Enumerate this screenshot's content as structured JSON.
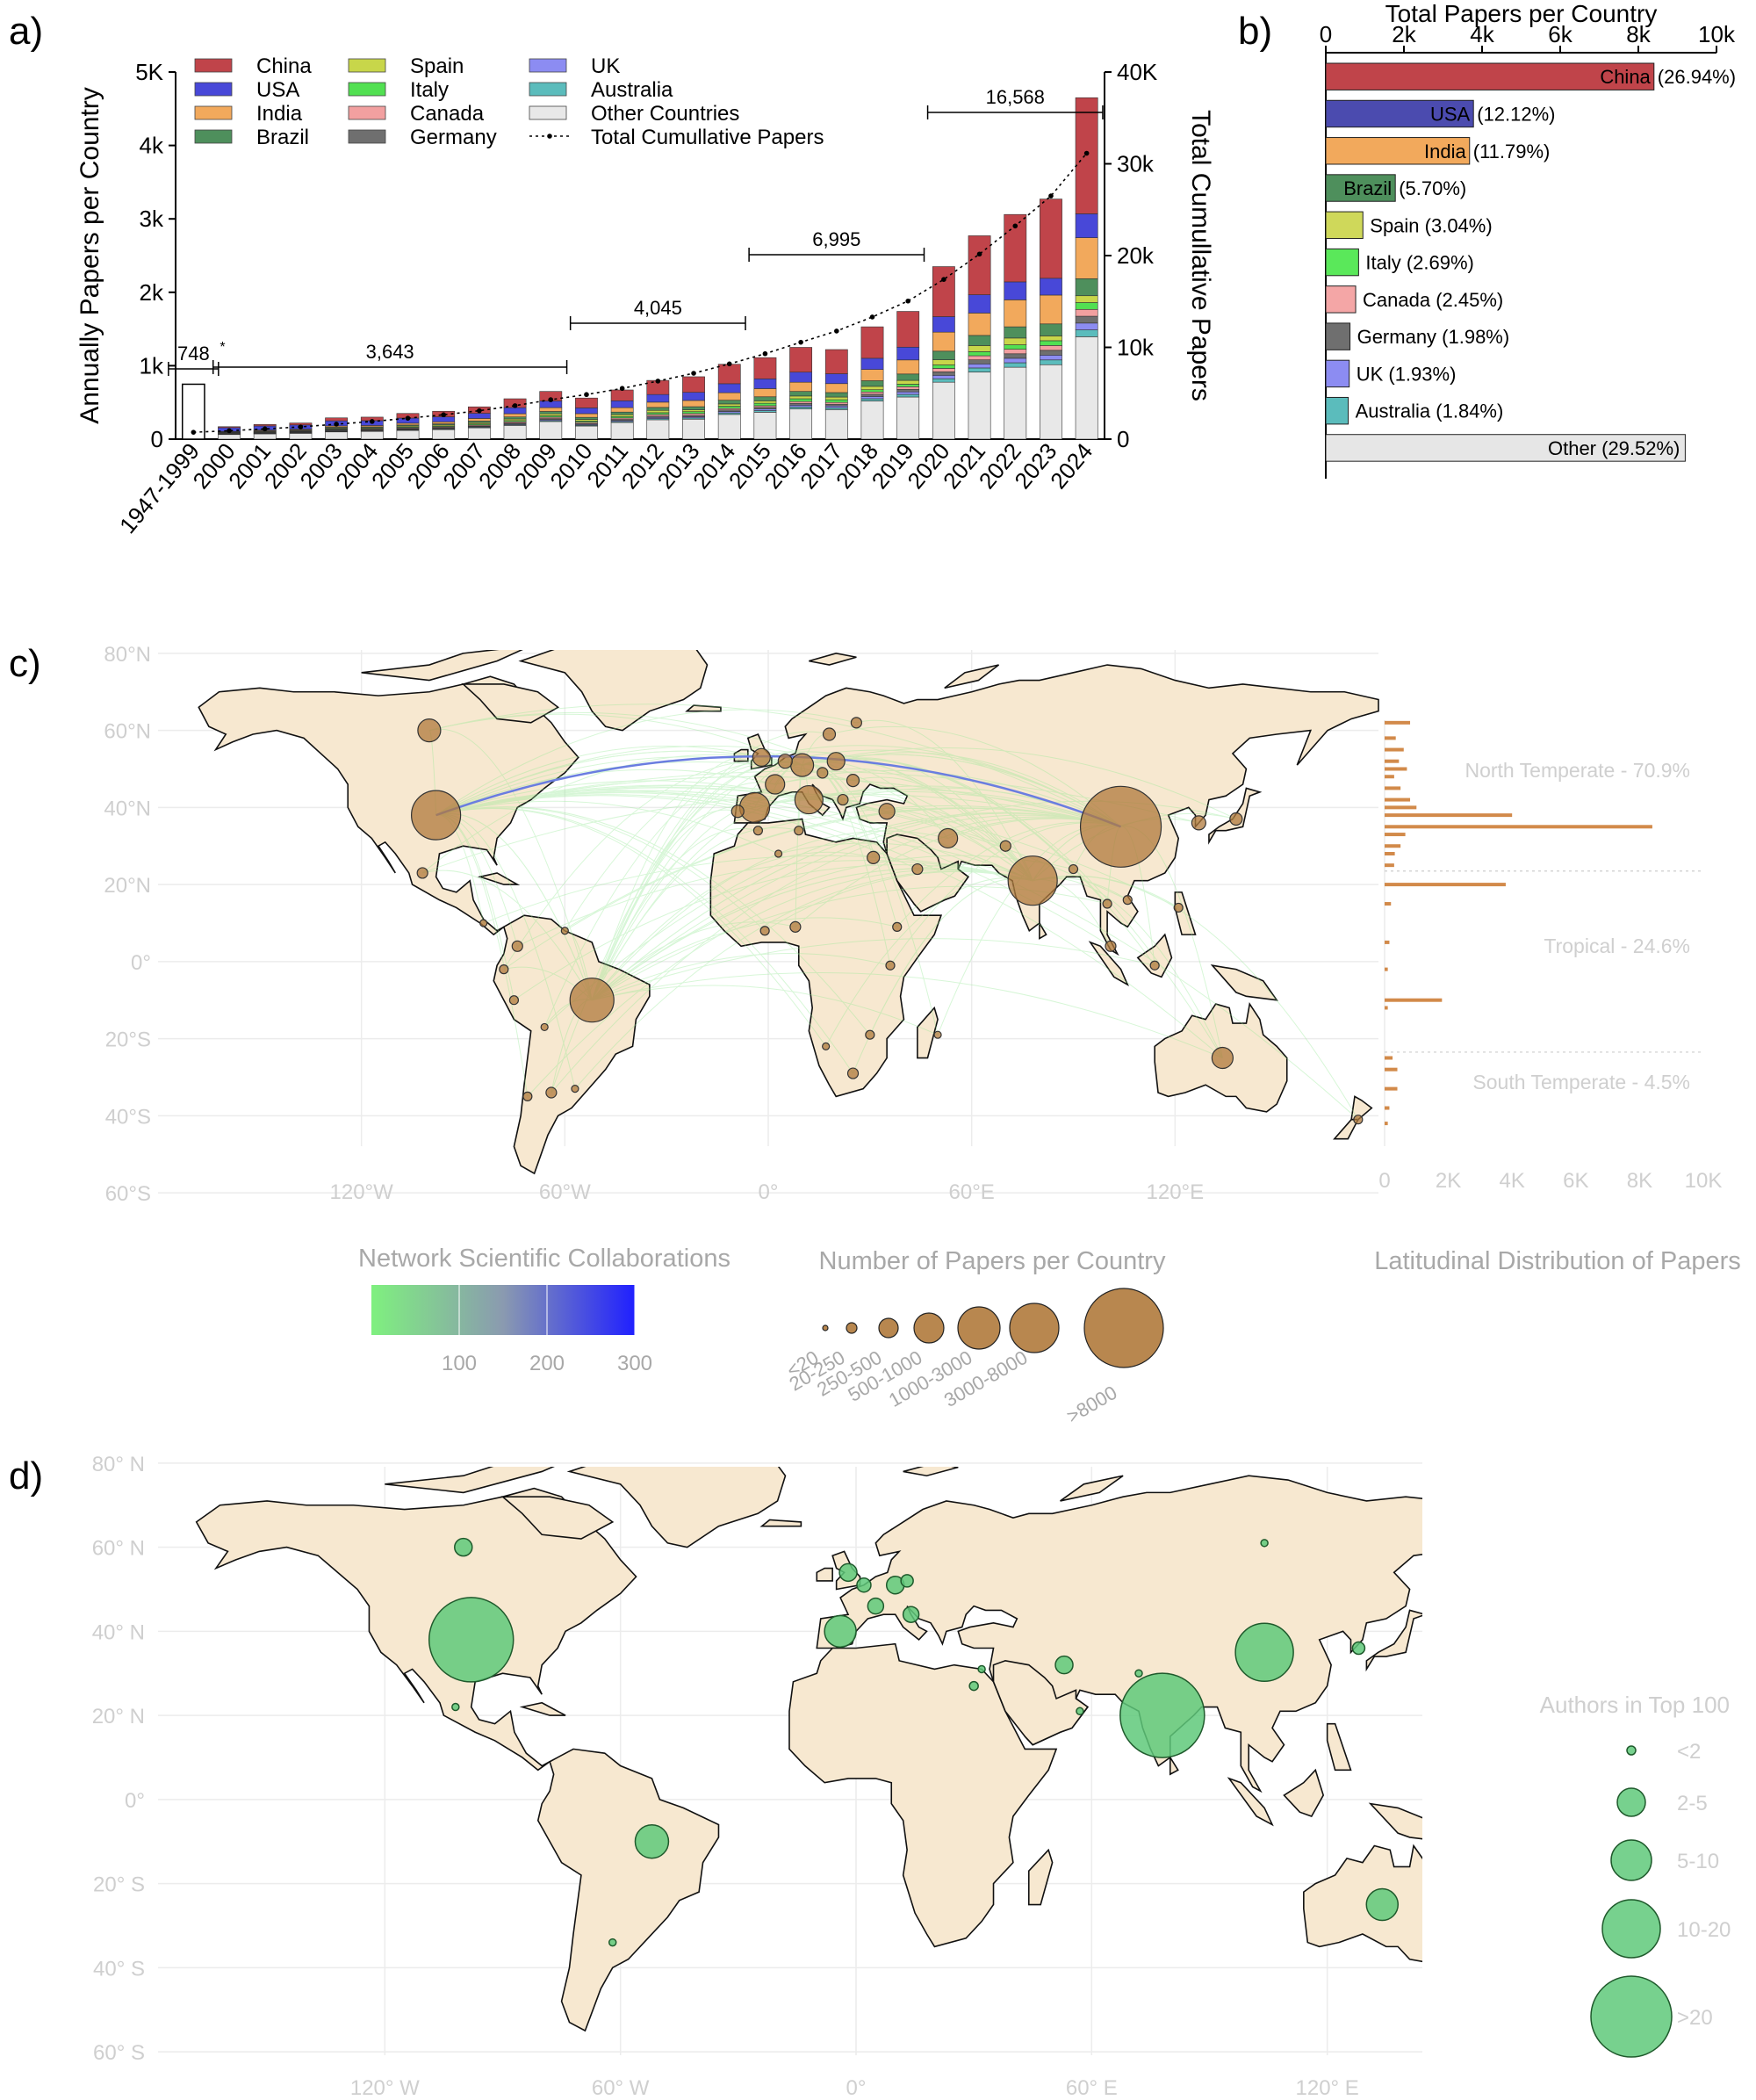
{
  "panel_labels": {
    "a": "a)",
    "b": "b)",
    "c": "c)",
    "d": "d)"
  },
  "chart_data": [
    {
      "type": "bar",
      "panel": "a",
      "stacked": true,
      "ylabel": "Annually Papers per Country",
      "y2label": "Total Cumullative Papers",
      "ylim": [
        0,
        5000
      ],
      "y2lim": [
        0,
        40000
      ],
      "yticks": [
        "0",
        "1k",
        "2k",
        "3k",
        "4k",
        "5K"
      ],
      "y2ticks": [
        "0",
        "10k",
        "20k",
        "30k",
        "40K"
      ],
      "categories": [
        "1947-1999",
        "2000",
        "2001",
        "2002",
        "2003",
        "2004",
        "2005",
        "2006",
        "2007",
        "2008",
        "2009",
        "2010",
        "2011",
        "2012",
        "2013",
        "2014",
        "2015",
        "2016",
        "2017",
        "2018",
        "2019",
        "2020",
        "2021",
        "2022",
        "2023",
        "2024"
      ],
      "totals": [
        748,
        170,
        200,
        220,
        290,
        300,
        350,
        380,
        440,
        550,
        650,
        560,
        670,
        800,
        850,
        1020,
        1110,
        1250,
        1220,
        1530,
        1740,
        2350,
        2770,
        3060,
        3270,
        4650
      ],
      "series": [
        {
          "name": "China",
          "color": "#c0444a",
          "share": [
            0,
            0.08,
            0.1,
            0.12,
            0.14,
            0.16,
            0.18,
            0.2,
            0.2,
            0.22,
            0.2,
            0.24,
            0.22,
            0.24,
            0.25,
            0.26,
            0.26,
            0.27,
            0.27,
            0.28,
            0.28,
            0.29,
            0.29,
            0.3,
            0.33,
            0.34
          ]
        },
        {
          "name": "USA",
          "color": "#4848d8",
          "share": [
            0,
            0.3,
            0.28,
            0.26,
            0.24,
            0.22,
            0.2,
            0.18,
            0.16,
            0.15,
            0.14,
            0.14,
            0.14,
            0.13,
            0.13,
            0.12,
            0.12,
            0.11,
            0.11,
            0.1,
            0.1,
            0.09,
            0.09,
            0.08,
            0.07,
            0.07
          ]
        },
        {
          "name": "India",
          "color": "#f2a95c",
          "share": [
            0,
            0.04,
            0.05,
            0.05,
            0.06,
            0.06,
            0.07,
            0.07,
            0.08,
            0.08,
            0.08,
            0.09,
            0.09,
            0.09,
            0.1,
            0.1,
            0.1,
            0.1,
            0.1,
            0.1,
            0.11,
            0.11,
            0.11,
            0.12,
            0.12,
            0.12
          ]
        },
        {
          "name": "Brazil",
          "color": "#4e8f5c",
          "share": [
            0,
            0.03,
            0.03,
            0.03,
            0.04,
            0.04,
            0.04,
            0.04,
            0.05,
            0.05,
            0.05,
            0.05,
            0.05,
            0.05,
            0.05,
            0.05,
            0.05,
            0.05,
            0.05,
            0.05,
            0.05,
            0.05,
            0.05,
            0.05,
            0.05,
            0.05
          ]
        },
        {
          "name": "Spain",
          "color": "#c8d64a",
          "share": [
            0,
            0.04,
            0.04,
            0.04,
            0.04,
            0.04,
            0.04,
            0.04,
            0.04,
            0.04,
            0.04,
            0.04,
            0.04,
            0.04,
            0.03,
            0.03,
            0.03,
            0.03,
            0.03,
            0.03,
            0.03,
            0.03,
            0.03,
            0.03,
            0.02,
            0.02
          ]
        },
        {
          "name": "Italy",
          "color": "#52e052",
          "share": [
            0,
            0.03,
            0.03,
            0.03,
            0.03,
            0.03,
            0.03,
            0.03,
            0.03,
            0.03,
            0.03,
            0.03,
            0.03,
            0.03,
            0.03,
            0.03,
            0.03,
            0.03,
            0.03,
            0.02,
            0.02,
            0.02,
            0.02,
            0.02,
            0.02,
            0.02
          ]
        },
        {
          "name": "Canada",
          "color": "#f2a0a0",
          "share": [
            0,
            0.03,
            0.03,
            0.03,
            0.03,
            0.03,
            0.03,
            0.03,
            0.03,
            0.03,
            0.03,
            0.03,
            0.03,
            0.03,
            0.03,
            0.02,
            0.02,
            0.02,
            0.02,
            0.02,
            0.02,
            0.02,
            0.02,
            0.02,
            0.02,
            0.02
          ]
        },
        {
          "name": "Germany",
          "color": "#6f6f6f",
          "share": [
            0,
            0.03,
            0.03,
            0.03,
            0.03,
            0.03,
            0.03,
            0.03,
            0.02,
            0.02,
            0.02,
            0.02,
            0.02,
            0.02,
            0.02,
            0.02,
            0.02,
            0.02,
            0.02,
            0.02,
            0.02,
            0.02,
            0.02,
            0.02,
            0.02,
            0.02
          ]
        },
        {
          "name": "UK",
          "color": "#8c8cf2",
          "share": [
            0,
            0.03,
            0.03,
            0.03,
            0.03,
            0.02,
            0.02,
            0.02,
            0.02,
            0.02,
            0.02,
            0.02,
            0.02,
            0.02,
            0.02,
            0.02,
            0.02,
            0.02,
            0.02,
            0.02,
            0.02,
            0.02,
            0.02,
            0.02,
            0.02,
            0.02
          ]
        },
        {
          "name": "Australia",
          "color": "#5bbcbc",
          "share": [
            0,
            0.02,
            0.02,
            0.02,
            0.02,
            0.02,
            0.02,
            0.02,
            0.02,
            0.02,
            0.02,
            0.02,
            0.02,
            0.02,
            0.02,
            0.02,
            0.02,
            0.02,
            0.02,
            0.02,
            0.02,
            0.02,
            0.02,
            0.02,
            0.02,
            0.02
          ]
        },
        {
          "name": "Other Countries",
          "color": "#e8e8e8"
        }
      ],
      "legend_extra": "Total Cumullative Papers",
      "cumulative": [
        748,
        918,
        1118,
        1338,
        1628,
        1928,
        2278,
        2658,
        3098,
        3648,
        4298,
        4858,
        5528,
        6328,
        7178,
        8198,
        9308,
        10558,
        11778,
        13308,
        15048,
        17398,
        20168,
        23228,
        26498,
        31148
      ],
      "annotations": [
        {
          "label": "748",
          "star": "*",
          "from": "1947-1999",
          "to": "1947-1999"
        },
        {
          "label": "3,643",
          "from": "2000",
          "to": "2009"
        },
        {
          "label": "4,045",
          "from": "2010",
          "to": "2014"
        },
        {
          "label": "6,995",
          "from": "2015",
          "to": "2019"
        },
        {
          "label": "16,568",
          "from": "2020",
          "to": "2024"
        }
      ]
    },
    {
      "type": "bar",
      "panel": "b",
      "orientation": "horizontal",
      "title": "Total Papers per Country",
      "xlim": [
        0,
        10000
      ],
      "xticks": [
        "0",
        "2k",
        "4k",
        "6k",
        "8k",
        "10k"
      ],
      "categories": [
        "China",
        "USA",
        "India",
        "Brazil",
        "Spain",
        "Italy",
        "Canada",
        "Germany",
        "UK",
        "Australia",
        "Other"
      ],
      "values": [
        8400,
        3780,
        3680,
        1780,
        950,
        840,
        765,
        620,
        600,
        575,
        9200
      ],
      "labels": [
        "China",
        "USA",
        "India",
        "Brazil",
        "Spain (3.04%)",
        "Italy (2.69%)",
        "Canada (2.45%)",
        "Germany (1.98%)",
        "UK (1.93%)",
        "Australia (1.84%)",
        "Other (29.52%)"
      ],
      "pct_labels": [
        "(26.94%)",
        "(12.12%)",
        "(11.79%)",
        "(5.70%)",
        "",
        "",
        "",
        "",
        "",
        "",
        ""
      ],
      "colors": [
        "#c0444a",
        "#4b4baf",
        "#f2a95c",
        "#4e8f5c",
        "#cfd85a",
        "#5ae85a",
        "#f4a6a6",
        "#6f6f6f",
        "#8c8cf2",
        "#5bbcbc",
        "#e6e6e6"
      ]
    },
    {
      "type": "histogram",
      "panel": "c",
      "xlabel_ticks": [
        "0",
        "2K",
        "4K",
        "6K",
        "8K",
        "10K"
      ],
      "xlim": [
        0,
        10000
      ],
      "lat": [
        62,
        58,
        55,
        52,
        50,
        48,
        45,
        42,
        40,
        38,
        35,
        33,
        30,
        28,
        25,
        20,
        15,
        5,
        -2,
        -10,
        -12,
        -25,
        -28,
        -33,
        -38,
        -42
      ],
      "values": [
        800,
        350,
        600,
        450,
        700,
        300,
        500,
        800,
        1000,
        4000,
        8400,
        650,
        500,
        320,
        300,
        3800,
        200,
        150,
        100,
        1800,
        100,
        250,
        400,
        400,
        150,
        100
      ],
      "zones": [
        "North Temperate - 70.9%",
        "Tropical - 24.6%",
        "South Temperate - 4.5%"
      ]
    }
  ],
  "map_c": {
    "lat_labels": [
      "80°N",
      "60°N",
      "40°N",
      "20°N",
      "0°",
      "20°S",
      "40°S",
      "60°S"
    ],
    "lon_labels": [
      "120°W",
      "60°W",
      "0°",
      "60°E",
      "120°E"
    ],
    "legend_network_title": "Network Scientific Collaborations",
    "legend_network_ticks": [
      "100",
      "200",
      "300"
    ],
    "legend_papers_title": "Number of Papers per Country",
    "legend_papers_bins": [
      "<20",
      "20-250",
      "250-500",
      "500-1000",
      "1000-3000",
      "3000-8000",
      ">8000"
    ],
    "legend_lat_title": "Latitudinal Distribution of Papers",
    "bubbles": [
      {
        "lon": 104,
        "lat": 35,
        "r": 46
      },
      {
        "lon": -98,
        "lat": 38,
        "r": 28
      },
      {
        "lon": 78,
        "lat": 21,
        "r": 28
      },
      {
        "lon": -52,
        "lat": -10,
        "r": 25
      },
      {
        "lon": -4,
        "lat": 40,
        "r": 17
      },
      {
        "lon": 12,
        "lat": 42,
        "r": 16
      },
      {
        "lon": -100,
        "lat": 60,
        "r": 13
      },
      {
        "lon": 134,
        "lat": -25,
        "r": 12
      },
      {
        "lon": 10,
        "lat": 51,
        "r": 13
      },
      {
        "lon": 2,
        "lat": 46,
        "r": 11
      },
      {
        "lon": -2,
        "lat": 53,
        "r": 10
      },
      {
        "lon": 20,
        "lat": 52,
        "r": 10
      },
      {
        "lon": 53,
        "lat": 32,
        "r": 11
      },
      {
        "lon": 35,
        "lat": 39,
        "r": 9
      },
      {
        "lon": 5,
        "lat": 52,
        "r": 8
      },
      {
        "lon": 127,
        "lat": 36,
        "r": 8
      },
      {
        "lon": 138,
        "lat": 37,
        "r": 7
      },
      {
        "lon": 25,
        "lat": 47,
        "r": 7
      },
      {
        "lon": 31,
        "lat": 27,
        "r": 7
      },
      {
        "lon": 44,
        "lat": 24,
        "r": 6
      },
      {
        "lon": -102,
        "lat": 23,
        "r": 6
      },
      {
        "lon": -74,
        "lat": 4,
        "r": 6
      },
      {
        "lon": 8,
        "lat": 9,
        "r": 6
      },
      {
        "lon": 25,
        "lat": -29,
        "r": 6
      },
      {
        "lon": -64,
        "lat": -34,
        "r": 6
      },
      {
        "lon": -71,
        "lat": -35,
        "r": 5
      },
      {
        "lon": -3,
        "lat": 34,
        "r": 5
      },
      {
        "lon": -1,
        "lat": 8,
        "r": 5
      },
      {
        "lon": 38,
        "lat": 9,
        "r": 5
      },
      {
        "lon": 101,
        "lat": 4,
        "r": 6
      },
      {
        "lon": 100,
        "lat": 15,
        "r": 5
      },
      {
        "lon": 121,
        "lat": 14,
        "r": 5
      },
      {
        "lon": 114,
        "lat": -1,
        "r": 5
      },
      {
        "lon": 106,
        "lat": 16,
        "r": 5
      },
      {
        "lon": 90,
        "lat": 24,
        "r": 5
      },
      {
        "lon": 70,
        "lat": 30,
        "r": 6
      },
      {
        "lon": -78,
        "lat": -2,
        "r": 5
      },
      {
        "lon": -75,
        "lat": -10,
        "r": 5
      },
      {
        "lon": 36,
        "lat": -1,
        "r": 5
      },
      {
        "lon": 30,
        "lat": -19,
        "r": 5
      },
      {
        "lon": 18,
        "lat": 59,
        "r": 7
      },
      {
        "lon": 26,
        "lat": 62,
        "r": 6
      },
      {
        "lon": -9,
        "lat": 39,
        "r": 7
      },
      {
        "lon": 16,
        "lat": 49,
        "r": 6
      },
      {
        "lon": 22,
        "lat": 42,
        "r": 6
      },
      {
        "lon": 174,
        "lat": -41,
        "r": 5
      },
      {
        "lon": 50,
        "lat": -19,
        "r": 4
      },
      {
        "lon": -57,
        "lat": -33,
        "r": 4
      },
      {
        "lon": 9,
        "lat": 34,
        "r": 5
      },
      {
        "lon": 3,
        "lat": 28,
        "r": 4
      },
      {
        "lon": -60,
        "lat": 8,
        "r": 4
      },
      {
        "lon": -84,
        "lat": 10,
        "r": 4
      },
      {
        "lon": -66,
        "lat": -17,
        "r": 4
      },
      {
        "lon": 17,
        "lat": -22,
        "r": 4
      }
    ],
    "links_to": [
      [
        104,
        35
      ],
      [
        -98,
        38
      ],
      [
        10,
        51
      ],
      [
        78,
        21
      ],
      [
        -52,
        -10
      ]
    ]
  },
  "map_d": {
    "lat_labels": [
      "80° N",
      "60° N",
      "40° N",
      "20° N",
      "0°",
      "20° S",
      "40° S",
      "60° S"
    ],
    "lon_labels": [
      "120° W",
      "60° W",
      "0°",
      "60° E",
      "120° E"
    ],
    "legend_title": "Authors in Top 100",
    "legend_bins": [
      "<2",
      "2-5",
      "5-10",
      "10-20",
      ">20"
    ],
    "bubbles": [
      {
        "lon": -98,
        "lat": 38,
        "r": 48
      },
      {
        "lon": 78,
        "lat": 20,
        "r": 48
      },
      {
        "lon": 104,
        "lat": 35,
        "r": 33
      },
      {
        "lon": -52,
        "lat": -10,
        "r": 19
      },
      {
        "lon": -4,
        "lat": 40,
        "r": 18
      },
      {
        "lon": 134,
        "lat": -25,
        "r": 18
      },
      {
        "lon": -100,
        "lat": 60,
        "r": 10
      },
      {
        "lon": 53,
        "lat": 32,
        "r": 10
      },
      {
        "lon": -2,
        "lat": 54,
        "r": 10
      },
      {
        "lon": 10,
        "lat": 51,
        "r": 10
      },
      {
        "lon": 5,
        "lat": 46,
        "r": 9
      },
      {
        "lon": 14,
        "lat": 44,
        "r": 9
      },
      {
        "lon": 2,
        "lat": 51,
        "r": 8
      },
      {
        "lon": 13,
        "lat": 52,
        "r": 7
      },
      {
        "lon": 128,
        "lat": 36,
        "r": 7
      },
      {
        "lon": 30,
        "lat": 27,
        "r": 5
      },
      {
        "lon": 57,
        "lat": 21,
        "r": 4
      },
      {
        "lon": 72,
        "lat": 30,
        "r": 4
      },
      {
        "lon": -102,
        "lat": 22,
        "r": 4
      },
      {
        "lon": 104,
        "lat": 61,
        "r": 4
      },
      {
        "lon": -62,
        "lat": -34,
        "r": 4
      },
      {
        "lon": 32,
        "lat": 31,
        "r": 4
      }
    ]
  }
}
